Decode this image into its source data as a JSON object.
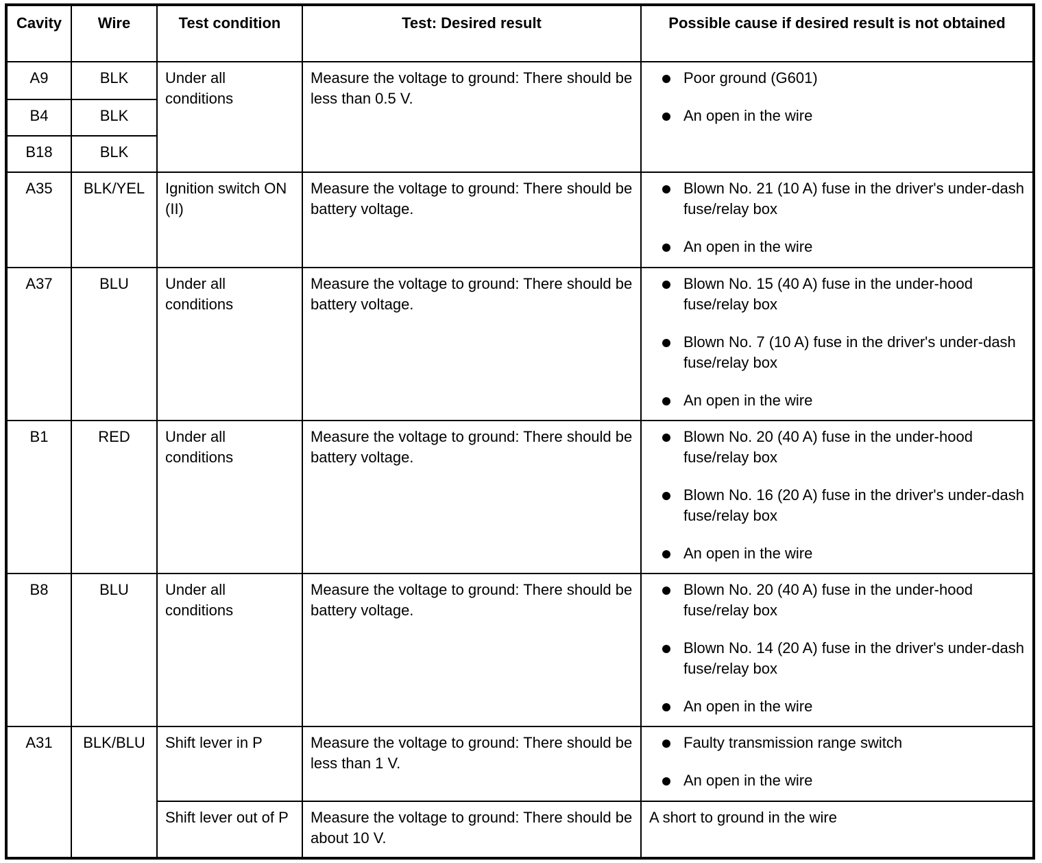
{
  "header": [
    "Cavity",
    "Wire",
    "Test condition",
    "Test: Desired result",
    "Possible cause if desired result is not obtained"
  ],
  "groups": [
    {
      "wires": [
        {
          "cavity": "A9",
          "wire": "BLK"
        },
        {
          "cavity": "B4",
          "wire": "BLK"
        },
        {
          "cavity": "B18",
          "wire": "BLK"
        }
      ],
      "condition": "Under all conditions",
      "result": "Measure the voltage to ground: There should be less than 0.5 V.",
      "causes": [
        "Poor ground (G601)",
        "An open in the wire"
      ]
    },
    {
      "wires": [
        {
          "cavity": "A35",
          "wire": "BLK/YEL"
        }
      ],
      "condition": "Ignition switch ON (II)",
      "result": "Measure the voltage to ground: There should be battery voltage.",
      "causes": [
        "Blown No. 21 (10 A) fuse in the driver's under-dash fuse/relay box",
        "An open in the wire"
      ]
    },
    {
      "wires": [
        {
          "cavity": "A37",
          "wire": "BLU"
        }
      ],
      "condition": "Under all conditions",
      "result": "Measure the voltage to ground: There should be battery voltage.",
      "causes": [
        "Blown No. 15 (40 A) fuse in the under-hood fuse/relay box",
        "Blown No. 7 (10 A) fuse in the driver's under-dash fuse/relay box",
        "An open in the wire"
      ]
    },
    {
      "wires": [
        {
          "cavity": "B1",
          "wire": "RED"
        }
      ],
      "condition": "Under all conditions",
      "result": "Measure the voltage to ground: There should be battery voltage.",
      "causes": [
        "Blown No. 20 (40 A) fuse in the under-hood fuse/relay box",
        "Blown No. 16 (20 A) fuse in the driver's under-dash fuse/relay box",
        "An open in the wire"
      ]
    },
    {
      "wires": [
        {
          "cavity": "B8",
          "wire": "BLU"
        }
      ],
      "condition": "Under all conditions",
      "result": "Measure the voltage to ground: There should be battery voltage.",
      "causes": [
        "Blown No. 20 (40 A) fuse in the under-hood fuse/relay box",
        "Blown No. 14 (20 A) fuse in the driver's under-dash fuse/relay box",
        "An open in the wire"
      ]
    }
  ],
  "a31": {
    "cavity": "A31",
    "wire": "BLK/BLU",
    "tests": [
      {
        "condition": "Shift lever in P",
        "result": "Measure the voltage to ground: There should be less than 1 V.",
        "causes": [
          "Faulty transmission range switch",
          "An open in the wire"
        ]
      },
      {
        "condition": "Shift lever out of P",
        "result": "Measure the voltage to ground: There should be about 10 V.",
        "cause_text": "A short to ground in the wire"
      }
    ]
  }
}
